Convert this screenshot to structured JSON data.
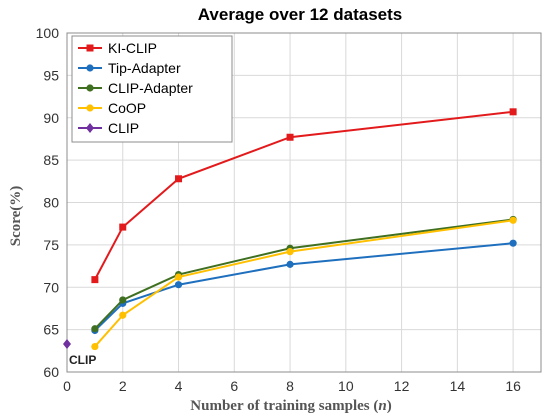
{
  "chart_data": {
    "type": "line",
    "title": "Average over 12 datasets",
    "xlabel_parts": [
      "Number of training samples (",
      "n",
      ")"
    ],
    "ylabel": "Score(%)",
    "xlim": [
      0,
      17
    ],
    "ylim": [
      60,
      100
    ],
    "xticks": [
      0,
      2,
      4,
      6,
      8,
      10,
      12,
      14,
      16
    ],
    "yticks": [
      60,
      65,
      70,
      75,
      80,
      85,
      90,
      95,
      100
    ],
    "grid": true,
    "legend_position": "top-left",
    "series": [
      {
        "name": "KI-CLIP",
        "color": "#e31a1c",
        "marker": "square",
        "x": [
          1,
          2,
          4,
          8,
          16
        ],
        "y": [
          70.9,
          77.1,
          82.8,
          87.7,
          90.7
        ]
      },
      {
        "name": "Tip-Adapter",
        "color": "#1f6fbf",
        "marker": "circle",
        "x": [
          1,
          2,
          4,
          8,
          16
        ],
        "y": [
          64.9,
          68.1,
          70.3,
          72.7,
          75.2
        ]
      },
      {
        "name": "CLIP-Adapter",
        "color": "#3f6f21",
        "marker": "circle",
        "x": [
          1,
          2,
          4,
          8,
          16
        ],
        "y": [
          65.1,
          68.5,
          71.5,
          74.6,
          78.0
        ]
      },
      {
        "name": "CoOP",
        "color": "#ffc000",
        "marker": "circle",
        "x": [
          1,
          2,
          4,
          8,
          16
        ],
        "y": [
          63.0,
          66.7,
          71.2,
          74.2,
          77.9
        ]
      },
      {
        "name": "CLIP",
        "color": "#7030a0",
        "marker": "diamond",
        "x": [
          0
        ],
        "y": [
          63.3
        ]
      }
    ],
    "annotations": [
      {
        "text": "CLIP",
        "x": 0,
        "y": 63.3
      }
    ]
  }
}
